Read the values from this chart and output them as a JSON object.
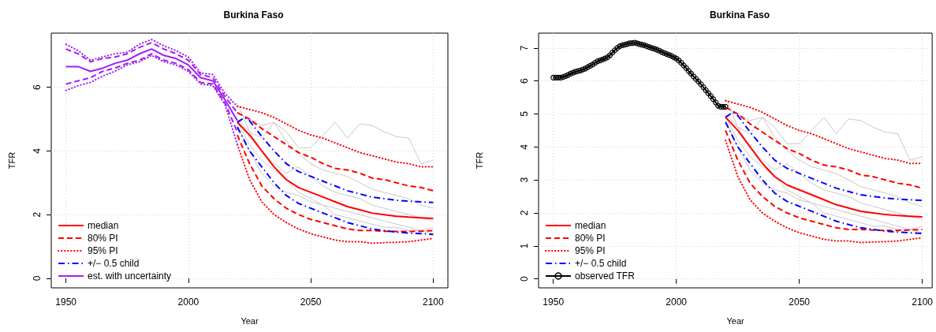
{
  "chart_data": [
    {
      "type": "line",
      "title": "Burkina Faso",
      "xlabel": "Year",
      "ylabel": "TFR",
      "xlim": [
        1944,
        2106
      ],
      "ylim": [
        -0.3,
        7.7
      ],
      "xticks": [
        1950,
        2000,
        2050,
        2100
      ],
      "yticks": [
        0,
        2,
        4,
        6
      ],
      "grid": true,
      "legend": "bottom left",
      "marker": "none",
      "series": [
        {
          "color": "#c8c8c8",
          "line_style": "solid",
          "x": [
            2020,
            2025,
            2030,
            2035,
            2040,
            2045,
            2050,
            2055,
            2060,
            2065,
            2070,
            2075,
            2080,
            2085,
            2090,
            2095,
            2100
          ],
          "values": [
            5.2,
            5.0,
            4.8,
            4.9,
            4.6,
            4.1,
            4.1,
            4.5,
            4.9,
            4.4,
            4.85,
            4.8,
            4.6,
            4.45,
            4.4,
            3.6,
            3.7
          ]
        },
        {
          "color": "#c8c8c8",
          "line_style": "solid",
          "x": [
            2020,
            2025,
            2030,
            2035,
            2040,
            2045,
            2050,
            2055,
            2060,
            2065,
            2070,
            2075,
            2080,
            2085,
            2090,
            2095,
            2100
          ],
          "values": [
            5.5,
            4.6,
            4.4,
            4.9,
            4.3,
            3.9,
            3.6,
            3.4,
            3.3,
            3.2,
            3.0,
            2.8,
            2.7,
            2.6,
            2.5,
            2.3,
            2.2
          ]
        },
        {
          "color": "#c8c8c8",
          "line_style": "solid",
          "x": [
            2020,
            2025,
            2030,
            2035,
            2040,
            2045,
            2050,
            2055,
            2060,
            2065,
            2070,
            2075,
            2080,
            2085,
            2090,
            2095,
            2100
          ],
          "values": [
            4.8,
            4.0,
            3.3,
            2.9,
            2.7,
            2.6,
            2.4,
            2.3,
            2.2,
            2.1,
            2.0,
            1.9,
            1.8,
            1.7,
            1.6,
            1.5,
            1.4
          ]
        },
        {
          "color": "#c8c8c8",
          "line_style": "solid",
          "x": [
            2020,
            2025,
            2030,
            2035,
            2040,
            2045,
            2050,
            2055,
            2060,
            2065,
            2070,
            2075,
            2080,
            2085,
            2090,
            2095,
            2100
          ],
          "values": [
            5.0,
            4.6,
            4.0,
            3.6,
            3.3,
            3.5,
            3.2,
            2.9,
            2.7,
            2.6,
            2.5,
            2.3,
            2.2,
            2.1,
            2.0,
            1.9,
            1.8
          ]
        },
        {
          "color": "#c8c8c8",
          "line_style": "solid",
          "x": [
            2020,
            2025,
            2030,
            2035,
            2040,
            2045,
            2050,
            2055,
            2060,
            2065,
            2070,
            2075,
            2080,
            2085,
            2090,
            2095,
            2100
          ],
          "values": [
            4.9,
            4.2,
            3.7,
            3.4,
            3.1,
            2.7,
            2.5,
            2.3,
            2.0,
            1.9,
            1.8,
            1.7,
            1.6,
            1.6,
            1.5,
            1.5,
            1.6
          ]
        },
        {
          "name": "median",
          "color": "#ff0000",
          "line_style": "solid",
          "x": [
            2020,
            2025,
            2030,
            2035,
            2040,
            2045,
            2050,
            2055,
            2060,
            2065,
            2070,
            2075,
            2080,
            2085,
            2090,
            2095,
            2100
          ],
          "values": [
            4.9,
            4.5,
            4.0,
            3.5,
            3.1,
            2.85,
            2.7,
            2.55,
            2.4,
            2.25,
            2.15,
            2.05,
            2.0,
            1.95,
            1.92,
            1.9,
            1.88
          ]
        },
        {
          "name": "80% PI",
          "color": "#ff0000",
          "line_style": "dashed",
          "x": [
            2020,
            2025,
            2030,
            2035,
            2040,
            2045,
            2050,
            2055,
            2060,
            2065,
            2070,
            2075,
            2080,
            2085,
            2090,
            2095,
            2100
          ],
          "values": [
            5.2,
            5.0,
            4.7,
            4.45,
            4.2,
            3.95,
            3.8,
            3.6,
            3.45,
            3.4,
            3.3,
            3.15,
            3.1,
            3.0,
            2.9,
            2.85,
            2.75
          ]
        },
        {
          "color": "#ff0000",
          "line_style": "dashed",
          "x": [
            2020,
            2025,
            2030,
            2035,
            2040,
            2045,
            2050,
            2055,
            2060,
            2065,
            2070,
            2075,
            2080,
            2085,
            2090,
            2095,
            2100
          ],
          "values": [
            4.5,
            3.6,
            2.9,
            2.5,
            2.2,
            2.0,
            1.85,
            1.75,
            1.65,
            1.55,
            1.5,
            1.5,
            1.48,
            1.47,
            1.47,
            1.48,
            1.5
          ]
        },
        {
          "name": "95% PI",
          "color": "#ff0000",
          "line_style": "dotted",
          "x": [
            2020,
            2025,
            2030,
            2035,
            2040,
            2045,
            2050,
            2055,
            2060,
            2065,
            2070,
            2075,
            2080,
            2085,
            2090,
            2095,
            2100
          ],
          "values": [
            5.4,
            5.3,
            5.2,
            5.05,
            4.85,
            4.65,
            4.5,
            4.4,
            4.25,
            4.1,
            3.95,
            3.85,
            3.75,
            3.65,
            3.6,
            3.5,
            3.5
          ]
        },
        {
          "color": "#ff0000",
          "line_style": "dotted",
          "x": [
            2020,
            2025,
            2030,
            2035,
            2040,
            2045,
            2050,
            2055,
            2060,
            2065,
            2070,
            2075,
            2080,
            2085,
            2090,
            2095,
            2100
          ],
          "values": [
            4.2,
            3.1,
            2.4,
            2.0,
            1.75,
            1.55,
            1.4,
            1.3,
            1.2,
            1.15,
            1.15,
            1.1,
            1.12,
            1.13,
            1.15,
            1.2,
            1.25
          ]
        },
        {
          "name": "+/− 0.5 child",
          "color": "#0000ff",
          "line_style": "dashdot",
          "x": [
            2020,
            2023,
            2025,
            2030,
            2035,
            2040,
            2045,
            2050,
            2055,
            2060,
            2065,
            2070,
            2075,
            2080,
            2085,
            2090,
            2095,
            2100
          ],
          "values": [
            4.9,
            5.05,
            4.95,
            4.45,
            4.0,
            3.6,
            3.35,
            3.2,
            3.05,
            2.9,
            2.75,
            2.65,
            2.55,
            2.5,
            2.45,
            2.42,
            2.4,
            2.38
          ]
        },
        {
          "color": "#0000ff",
          "line_style": "dashdot",
          "x": [
            2020,
            2025,
            2030,
            2035,
            2040,
            2045,
            2050,
            2055,
            2060,
            2065,
            2070,
            2075,
            2080,
            2085,
            2090,
            2095,
            2100
          ],
          "values": [
            4.75,
            4.0,
            3.5,
            3.0,
            2.6,
            2.35,
            2.2,
            2.05,
            1.9,
            1.75,
            1.65,
            1.55,
            1.5,
            1.45,
            1.42,
            1.4,
            1.38
          ]
        },
        {
          "color": "#a020f0",
          "line_style": "dashed",
          "x": [
            1950,
            1955,
            1960,
            1965,
            1970,
            1975,
            1980,
            1985,
            1990,
            1995,
            2000,
            2005,
            2010,
            2015,
            2020
          ],
          "values": [
            7.2,
            7.05,
            6.8,
            6.9,
            6.95,
            7.05,
            7.25,
            7.4,
            7.2,
            7.05,
            6.85,
            6.4,
            6.3,
            5.7,
            5.2
          ]
        },
        {
          "color": "#a020f0",
          "line_style": "dashed",
          "x": [
            1950,
            1955,
            1960,
            1965,
            1970,
            1975,
            1980,
            1985,
            1990,
            1995,
            2000,
            2005,
            2010,
            2015,
            2020
          ],
          "values": [
            6.1,
            6.2,
            6.3,
            6.5,
            6.6,
            6.75,
            6.85,
            7.05,
            6.85,
            6.75,
            6.55,
            6.15,
            6.1,
            5.5,
            4.6
          ]
        },
        {
          "color": "#a020f0",
          "line_style": "dotted",
          "x": [
            1950,
            1955,
            1960,
            1965,
            1970,
            1975,
            1980,
            1985,
            1990,
            1995,
            2000,
            2005,
            2010,
            2015,
            2020
          ],
          "values": [
            7.35,
            7.15,
            6.85,
            6.95,
            7.05,
            7.1,
            7.35,
            7.5,
            7.3,
            7.15,
            6.95,
            6.45,
            6.4,
            5.8,
            5.4
          ]
        },
        {
          "color": "#a020f0",
          "line_style": "dotted",
          "x": [
            1950,
            1955,
            1960,
            1965,
            1970,
            1975,
            1980,
            1985,
            1990,
            1995,
            2000,
            2005,
            2010,
            2015,
            2020
          ],
          "values": [
            5.9,
            6.05,
            6.15,
            6.35,
            6.5,
            6.7,
            6.8,
            7.0,
            6.8,
            6.7,
            6.5,
            6.1,
            6.05,
            5.45,
            4.2
          ]
        },
        {
          "name": "est. with uncertainty",
          "color": "#a020f0",
          "line_style": "solid",
          "x": [
            1950,
            1955,
            1960,
            1965,
            1970,
            1975,
            1980,
            1985,
            1990,
            1995,
            2000,
            2005,
            2010,
            2015,
            2020
          ],
          "values": [
            6.65,
            6.65,
            6.5,
            6.6,
            6.75,
            6.85,
            7.05,
            7.2,
            7.0,
            6.9,
            6.7,
            6.3,
            6.2,
            5.6,
            4.95
          ]
        }
      ]
    },
    {
      "type": "line",
      "title": "Burkina Faso",
      "xlabel": "Year",
      "ylabel": "TFR",
      "xlim": [
        1944,
        2104
      ],
      "ylim": [
        -0.27,
        7.45
      ],
      "xticks": [
        1950,
        2000,
        2050,
        2100
      ],
      "yticks": [
        0,
        1,
        2,
        3,
        4,
        5,
        6,
        7
      ],
      "grid": true,
      "legend": "bottom left",
      "marker": "none",
      "series": [
        {
          "color": "#c8c8c8",
          "line_style": "solid",
          "x": [
            2020,
            2025,
            2030,
            2035,
            2040,
            2045,
            2050,
            2055,
            2060,
            2065,
            2070,
            2075,
            2080,
            2085,
            2090,
            2095,
            2100
          ],
          "values": [
            5.2,
            5.0,
            4.8,
            4.9,
            4.6,
            4.1,
            4.1,
            4.5,
            4.9,
            4.4,
            4.85,
            4.8,
            4.6,
            4.45,
            4.4,
            3.6,
            3.7
          ]
        },
        {
          "color": "#c8c8c8",
          "line_style": "solid",
          "x": [
            2020,
            2025,
            2030,
            2035,
            2040,
            2045,
            2050,
            2055,
            2060,
            2065,
            2070,
            2075,
            2080,
            2085,
            2090,
            2095,
            2100
          ],
          "values": [
            5.5,
            4.6,
            4.4,
            4.9,
            4.3,
            3.9,
            3.6,
            3.4,
            3.3,
            3.2,
            3.0,
            2.8,
            2.7,
            2.6,
            2.5,
            2.3,
            2.2
          ]
        },
        {
          "color": "#c8c8c8",
          "line_style": "solid",
          "x": [
            2020,
            2025,
            2030,
            2035,
            2040,
            2045,
            2050,
            2055,
            2060,
            2065,
            2070,
            2075,
            2080,
            2085,
            2090,
            2095,
            2100
          ],
          "values": [
            4.8,
            4.0,
            3.3,
            2.9,
            2.7,
            2.6,
            2.4,
            2.3,
            2.2,
            2.1,
            2.0,
            1.9,
            1.8,
            1.7,
            1.6,
            1.5,
            1.4
          ]
        },
        {
          "color": "#c8c8c8",
          "line_style": "solid",
          "x": [
            2020,
            2025,
            2030,
            2035,
            2040,
            2045,
            2050,
            2055,
            2060,
            2065,
            2070,
            2075,
            2080,
            2085,
            2090,
            2095,
            2100
          ],
          "values": [
            5.0,
            4.6,
            4.0,
            3.6,
            3.3,
            3.5,
            3.2,
            2.9,
            2.7,
            2.6,
            2.5,
            2.3,
            2.2,
            2.1,
            2.0,
            1.9,
            1.8
          ]
        },
        {
          "color": "#c8c8c8",
          "line_style": "solid",
          "x": [
            2020,
            2025,
            2030,
            2035,
            2040,
            2045,
            2050,
            2055,
            2060,
            2065,
            2070,
            2075,
            2080,
            2085,
            2090,
            2095,
            2100
          ],
          "values": [
            4.9,
            4.2,
            3.7,
            3.4,
            3.1,
            2.7,
            2.5,
            2.3,
            2.0,
            1.9,
            1.8,
            1.7,
            1.6,
            1.6,
            1.5,
            1.5,
            1.6
          ]
        },
        {
          "name": "median",
          "color": "#ff0000",
          "line_style": "solid",
          "x": [
            2020,
            2025,
            2030,
            2035,
            2040,
            2045,
            2050,
            2055,
            2060,
            2065,
            2070,
            2075,
            2080,
            2085,
            2090,
            2095,
            2100
          ],
          "values": [
            4.9,
            4.5,
            4.0,
            3.5,
            3.1,
            2.85,
            2.7,
            2.55,
            2.4,
            2.25,
            2.15,
            2.05,
            2.0,
            1.95,
            1.92,
            1.9,
            1.88
          ]
        },
        {
          "name": "80% PI",
          "color": "#ff0000",
          "line_style": "dashed",
          "x": [
            2020,
            2025,
            2030,
            2035,
            2040,
            2045,
            2050,
            2055,
            2060,
            2065,
            2070,
            2075,
            2080,
            2085,
            2090,
            2095,
            2100
          ],
          "values": [
            5.2,
            5.0,
            4.7,
            4.45,
            4.2,
            3.95,
            3.8,
            3.6,
            3.45,
            3.4,
            3.3,
            3.15,
            3.1,
            3.0,
            2.9,
            2.85,
            2.75
          ]
        },
        {
          "color": "#ff0000",
          "line_style": "dashed",
          "x": [
            2020,
            2025,
            2030,
            2035,
            2040,
            2045,
            2050,
            2055,
            2060,
            2065,
            2070,
            2075,
            2080,
            2085,
            2090,
            2095,
            2100
          ],
          "values": [
            4.5,
            3.6,
            2.9,
            2.5,
            2.2,
            2.0,
            1.85,
            1.75,
            1.65,
            1.55,
            1.5,
            1.5,
            1.48,
            1.47,
            1.47,
            1.48,
            1.5
          ]
        },
        {
          "name": "95% PI",
          "color": "#ff0000",
          "line_style": "dotted",
          "x": [
            2020,
            2025,
            2030,
            2035,
            2040,
            2045,
            2050,
            2055,
            2060,
            2065,
            2070,
            2075,
            2080,
            2085,
            2090,
            2095,
            2100
          ],
          "values": [
            5.4,
            5.3,
            5.2,
            5.05,
            4.85,
            4.65,
            4.5,
            4.4,
            4.25,
            4.1,
            3.95,
            3.85,
            3.75,
            3.65,
            3.6,
            3.5,
            3.5
          ]
        },
        {
          "color": "#ff0000",
          "line_style": "dotted",
          "x": [
            2020,
            2025,
            2030,
            2035,
            2040,
            2045,
            2050,
            2055,
            2060,
            2065,
            2070,
            2075,
            2080,
            2085,
            2090,
            2095,
            2100
          ],
          "values": [
            4.2,
            3.1,
            2.4,
            2.0,
            1.75,
            1.55,
            1.4,
            1.3,
            1.2,
            1.15,
            1.15,
            1.1,
            1.12,
            1.13,
            1.15,
            1.2,
            1.25
          ]
        },
        {
          "name": "+/− 0.5 child",
          "color": "#0000ff",
          "line_style": "dashdot",
          "x": [
            2020,
            2023,
            2025,
            2030,
            2035,
            2040,
            2045,
            2050,
            2055,
            2060,
            2065,
            2070,
            2075,
            2080,
            2085,
            2090,
            2095,
            2100
          ],
          "values": [
            4.9,
            5.05,
            4.95,
            4.45,
            4.0,
            3.6,
            3.35,
            3.2,
            3.05,
            2.9,
            2.75,
            2.65,
            2.55,
            2.5,
            2.45,
            2.42,
            2.4,
            2.38
          ]
        },
        {
          "color": "#0000ff",
          "line_style": "dashdot",
          "x": [
            2020,
            2025,
            2030,
            2035,
            2040,
            2045,
            2050,
            2055,
            2060,
            2065,
            2070,
            2075,
            2080,
            2085,
            2090,
            2095,
            2100
          ],
          "values": [
            4.75,
            4.0,
            3.5,
            3.0,
            2.6,
            2.35,
            2.2,
            2.05,
            1.9,
            1.75,
            1.65,
            1.55,
            1.5,
            1.45,
            1.42,
            1.4,
            1.38
          ]
        },
        {
          "name": "observed TFR",
          "color": "#000000",
          "line_style": "solid",
          "marker": "circle",
          "x": [
            1950,
            1951,
            1952,
            1953,
            1954,
            1955,
            1956,
            1957,
            1958,
            1959,
            1960,
            1961,
            1962,
            1963,
            1964,
            1965,
            1966,
            1967,
            1968,
            1969,
            1970,
            1971,
            1972,
            1973,
            1974,
            1975,
            1976,
            1977,
            1978,
            1979,
            1980,
            1981,
            1982,
            1983,
            1984,
            1985,
            1986,
            1987,
            1988,
            1989,
            1990,
            1991,
            1992,
            1993,
            1994,
            1995,
            1996,
            1997,
            1998,
            1999,
            2000,
            2001,
            2002,
            2003,
            2004,
            2005,
            2006,
            2007,
            2008,
            2009,
            2010,
            2011,
            2012,
            2013,
            2014,
            2015,
            2016,
            2017,
            2018,
            2019,
            2020
          ],
          "values": [
            6.1,
            6.1,
            6.1,
            6.1,
            6.12,
            6.15,
            6.18,
            6.22,
            6.25,
            6.28,
            6.3,
            6.32,
            6.35,
            6.38,
            6.42,
            6.46,
            6.5,
            6.55,
            6.6,
            6.62,
            6.65,
            6.68,
            6.72,
            6.78,
            6.86,
            6.93,
            7.0,
            7.05,
            7.08,
            7.1,
            7.12,
            7.14,
            7.15,
            7.16,
            7.14,
            7.12,
            7.1,
            7.08,
            7.05,
            7.03,
            7.0,
            6.98,
            6.95,
            6.92,
            6.88,
            6.85,
            6.82,
            6.79,
            6.76,
            6.72,
            6.68,
            6.62,
            6.55,
            6.47,
            6.39,
            6.3,
            6.22,
            6.14,
            6.06,
            5.98,
            5.9,
            5.81,
            5.72,
            5.63,
            5.54,
            5.45,
            5.35,
            5.25,
            5.22,
            5.22,
            5.22
          ]
        }
      ]
    }
  ]
}
